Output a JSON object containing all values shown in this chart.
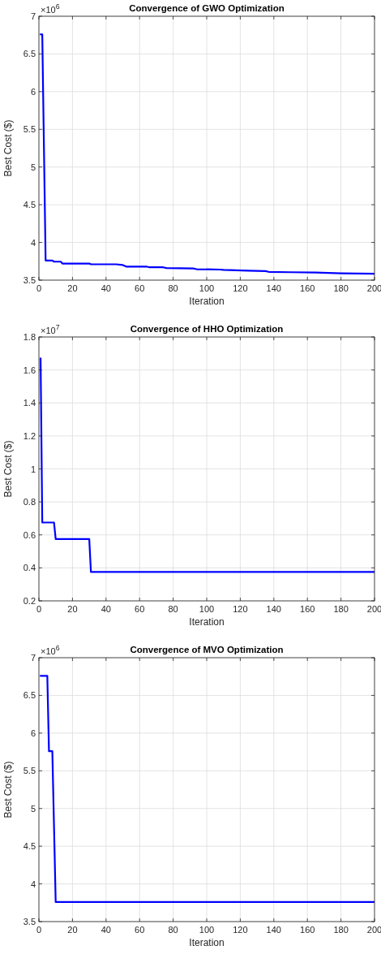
{
  "chart_data": [
    {
      "type": "line",
      "title": "Convergence of GWO Optimization",
      "xlabel": "Iteration",
      "ylabel": "Best Cost ($)",
      "annotations": [
        "×10$^{6}$"
      ],
      "grid": true,
      "line_style": "solid",
      "xlim": [
        0,
        200
      ],
      "xticks": [
        0,
        20,
        40,
        60,
        80,
        100,
        120,
        140,
        160,
        180,
        200
      ],
      "ylim": [
        3.5,
        7
      ],
      "yticks": [
        3.5,
        4,
        4.5,
        5,
        5.5,
        6,
        6.5,
        7
      ],
      "series": [
        {
          "color": "#0000ff",
          "x": [
            1,
            2,
            4,
            8,
            9,
            13,
            14,
            30,
            31,
            46,
            50,
            52,
            64,
            66,
            74,
            76,
            92,
            94,
            108,
            110,
            125,
            135,
            137,
            150,
            165,
            180,
            200
          ],
          "values": [
            6.76,
            6.76,
            3.76,
            3.76,
            3.745,
            3.745,
            3.72,
            3.72,
            3.71,
            3.71,
            3.7,
            3.68,
            3.68,
            3.67,
            3.67,
            3.66,
            3.655,
            3.645,
            3.64,
            3.635,
            3.625,
            3.62,
            3.61,
            3.605,
            3.6,
            3.59,
            3.585
          ]
        }
      ]
    },
    {
      "type": "line",
      "title": "Convergence of HHO Optimization",
      "xlabel": "Iteration",
      "ylabel": "Best Cost ($)",
      "annotations": [
        "×10$^{7}$"
      ],
      "grid": true,
      "line_style": "solid",
      "xlim": [
        0,
        200
      ],
      "xticks": [
        0,
        20,
        40,
        60,
        80,
        100,
        120,
        140,
        160,
        180,
        200
      ],
      "ylim": [
        0.2,
        1.8
      ],
      "yticks": [
        0.2,
        0.4,
        0.6,
        0.8,
        1,
        1.2,
        1.4,
        1.6,
        1.8
      ],
      "series": [
        {
          "color": "#0000ff",
          "x": [
            1,
            2,
            9,
            10,
            30,
            31,
            200
          ],
          "values": [
            1.67,
            0.675,
            0.675,
            0.575,
            0.575,
            0.375,
            0.375
          ]
        }
      ]
    },
    {
      "type": "line",
      "title": "Convergence of MVO Optimization",
      "xlabel": "Iteration",
      "ylabel": "Best Cost ($)",
      "annotations": [
        "×10$^{6}$"
      ],
      "grid": true,
      "line_style": "solid",
      "xlim": [
        0,
        200
      ],
      "xticks": [
        0,
        20,
        40,
        60,
        80,
        100,
        120,
        140,
        160,
        180,
        200
      ],
      "ylim": [
        3.5,
        7
      ],
      "yticks": [
        3.5,
        4,
        4.5,
        5,
        5.5,
        6,
        6.5,
        7
      ],
      "series": [
        {
          "color": "#0000ff",
          "x": [
            1,
            5,
            6,
            8,
            10,
            200
          ],
          "values": [
            6.76,
            6.76,
            5.76,
            5.76,
            3.76,
            3.76
          ]
        }
      ]
    }
  ]
}
